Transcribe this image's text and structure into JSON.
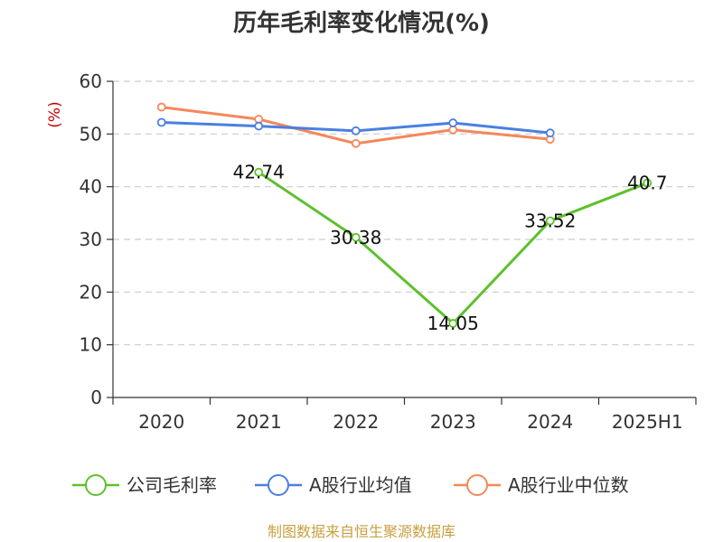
{
  "chart_data": {
    "type": "line",
    "title": "历年毛利率变化情况(%)",
    "ylabel": "(%)",
    "xlabel": "",
    "categories": [
      "2020",
      "2021",
      "2022",
      "2023",
      "2024",
      "2025H1"
    ],
    "ylim": [
      0,
      60
    ],
    "yticks": [
      "0",
      "10",
      "20",
      "30",
      "40",
      "50",
      "60"
    ],
    "grid": true,
    "legend_position": "bottom",
    "series": [
      {
        "name": "公司毛利率",
        "color": "#5cc12d",
        "values": [
          null,
          42.74,
          30.38,
          14.05,
          33.52,
          40.7
        ],
        "labels": [
          "",
          "42.74",
          "30.38",
          "14.05",
          "33.52",
          "40.7"
        ],
        "show_labels": true
      },
      {
        "name": "A股行业均值",
        "color": "#4a7fe0",
        "values": [
          52.2,
          51.5,
          50.6,
          52.1,
          50.2,
          null
        ],
        "show_labels": false
      },
      {
        "name": "A股行业中位数",
        "color": "#f5875a",
        "values": [
          55.1,
          52.8,
          48.2,
          50.8,
          49.0,
          null
        ],
        "show_labels": false
      }
    ],
    "source": "制图数据来自恒生聚源数据库",
    "colors": {
      "title": "#333333",
      "ylabel": "#c00000",
      "source": "#c8a040",
      "grid": "#cccccc",
      "axis": "#333333"
    }
  }
}
